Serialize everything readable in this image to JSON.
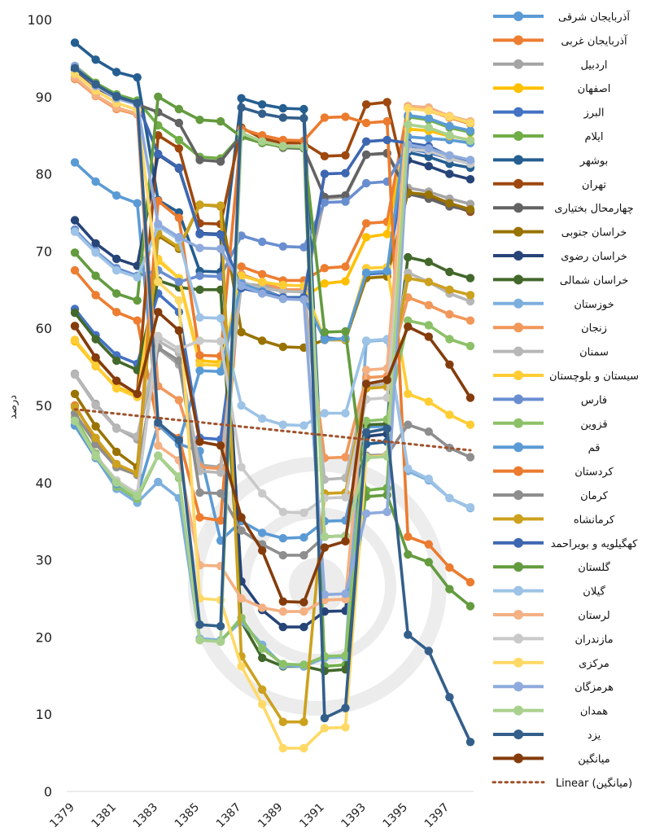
{
  "chart_data": {
    "type": "line",
    "xlabel": "",
    "ylabel": "درصد",
    "ylim": [
      0,
      100
    ],
    "yticks": [
      "0",
      "10",
      "20",
      "30",
      "40",
      "50",
      "60",
      "70",
      "80",
      "90",
      "100"
    ],
    "x": [
      1379,
      1380,
      1381,
      1382,
      1383,
      1384,
      1385,
      1386,
      1387,
      1388,
      1389,
      1390,
      1391,
      1392,
      1393,
      1394,
      1395,
      1396,
      1397,
      1398
    ],
    "xtick_labels": [
      "1379",
      "1381",
      "1383",
      "1385",
      "1387",
      "1389",
      "1391",
      "1393",
      "1395",
      "1397"
    ],
    "legend_position": "right",
    "grid": false,
    "trendline": {
      "label": "Linear (میانگین)",
      "start": 49.5,
      "end": 44.2,
      "color": "#a0522d"
    },
    "series": [
      {
        "name": "آذربایجان شرقی",
        "color": "#5b9bd5",
        "values": [
          81.5,
          79,
          77.2,
          76.2,
          47.5,
          45,
          44.1,
          32.5,
          35,
          33.5,
          32.8,
          32.9,
          35,
          35.1,
          47.2,
          47.3,
          84.8,
          84.6,
          84.4,
          84
        ]
      },
      {
        "name": "آذربایجان غربی",
        "color": "#ed7d31",
        "values": [
          67.5,
          64.3,
          62.1,
          61,
          47.3,
          45.8,
          35.5,
          35.1,
          68,
          67,
          66.2,
          66.2,
          67.8,
          68,
          73.6,
          73.8,
          88.6,
          88.2,
          87.3,
          86.5
        ]
      },
      {
        "name": "اردبیل",
        "color": "#a5a5a5",
        "values": [
          54.1,
          50.2,
          47.1,
          45.6,
          57.4,
          55.3,
          42.3,
          42,
          65.8,
          65.5,
          65,
          64.9,
          76.8,
          77,
          82.5,
          82.6,
          78.2,
          77.7,
          76.8,
          76.1
        ]
      },
      {
        "name": "اصفهان",
        "color": "#ffc000",
        "values": [
          58.3,
          55.1,
          52.4,
          51.3,
          68.8,
          66.5,
          55.8,
          55.6,
          66,
          65,
          64,
          64,
          65.8,
          66.1,
          71.8,
          72.2,
          85.8,
          85.6,
          84.9,
          84.4
        ]
      },
      {
        "name": "البرز",
        "color": "#4472c4",
        "values": [
          62.5,
          59.1,
          56.5,
          55.4,
          64.5,
          62.1,
          45.8,
          45.6,
          66,
          65,
          64,
          64,
          58.8,
          58.5,
          67,
          67.2,
          83.2,
          82.8,
          82,
          81.3
        ]
      },
      {
        "name": "ایلام",
        "color": "#70ad47",
        "values": [
          94,
          91.8,
          90.3,
          89.5,
          86.3,
          84.4,
          82.2,
          82,
          85,
          84.2,
          83.6,
          83.5,
          16.2,
          16.4,
          39,
          39.3,
          87.4,
          87,
          86,
          85.4
        ]
      },
      {
        "name": "بوشهر",
        "color": "#255e91",
        "values": [
          97,
          94.8,
          93.2,
          92.5,
          76.6,
          75,
          67.4,
          67.3,
          89.8,
          89,
          88.5,
          88.4,
          33,
          33.1,
          45,
          45.3,
          82.8,
          82.2,
          81.3,
          80.8
        ]
      },
      {
        "name": "تهران",
        "color": "#9e480e",
        "values": [
          60.3,
          56.2,
          53.2,
          51.5,
          85,
          83.3,
          73.6,
          73.5,
          86,
          84.6,
          84,
          84,
          82.3,
          82.4,
          89,
          89.3,
          77.6,
          77,
          76,
          75.1
        ]
      },
      {
        "name": "چهارمحال بختیاری",
        "color": "#636363",
        "values": [
          93.5,
          91.2,
          89.8,
          89,
          88,
          86.6,
          81.8,
          81.6,
          85,
          84.2,
          83.4,
          83.3,
          77,
          77.2,
          82.5,
          82.7,
          77.4,
          76.8,
          75.8,
          75.3
        ]
      },
      {
        "name": "خراسان جنوبی",
        "color": "#997300",
        "values": [
          51.5,
          47.3,
          44,
          42,
          72,
          70.3,
          76,
          75.8,
          59.5,
          58.4,
          57.6,
          57.5,
          58.5,
          58.5,
          66.5,
          66.7,
          77.6,
          77.3,
          76.2,
          75.4
        ]
      },
      {
        "name": "خراسان رضوی",
        "color": "#264478",
        "values": [
          74,
          71,
          69,
          68.1,
          82.5,
          80.7,
          72.3,
          72.2,
          27.2,
          23.5,
          21.3,
          21.3,
          23.3,
          23.4,
          46,
          46.3,
          81.8,
          81,
          80,
          79.3
        ]
      },
      {
        "name": "خراسان شمالی",
        "color": "#43682b",
        "values": [
          62,
          58.6,
          55.8,
          54.6,
          66.2,
          65.3,
          65,
          65,
          22,
          17.3,
          16.2,
          16.2,
          15.6,
          15.8,
          47.5,
          47.6,
          69.2,
          68.6,
          67.3,
          66.5
        ]
      },
      {
        "name": "خوزستان",
        "color": "#7cafdd",
        "values": [
          47.5,
          43.3,
          39.2,
          37.4,
          40.1,
          38,
          19.8,
          19.6,
          22,
          19,
          16.3,
          16.2,
          17.3,
          17.4,
          58.3,
          58.5,
          41.5,
          40.3,
          38,
          36.7
        ]
      },
      {
        "name": "زنجان",
        "color": "#f1975a",
        "values": [
          92.3,
          90.1,
          88.4,
          87.7,
          52.5,
          50.7,
          42,
          41.8,
          67,
          66,
          65,
          65,
          43.2,
          43.3,
          53.6,
          53.8,
          64,
          63,
          61.8,
          61
        ]
      },
      {
        "name": "سمنان",
        "color": "#b7b7b7",
        "values": [
          54,
          50,
          47,
          46,
          58.4,
          56.8,
          41.5,
          41.3,
          66,
          65.2,
          64.8,
          64.7,
          40.4,
          40.6,
          52.6,
          52.8,
          67.2,
          66,
          64.5,
          63.5
        ]
      },
      {
        "name": "سیستان و بلوچستان",
        "color": "#ffcd33",
        "values": [
          58.5,
          55.2,
          52.2,
          51.1,
          69,
          66.5,
          55.3,
          55.2,
          66.8,
          66,
          65.6,
          65.5,
          58.5,
          58.6,
          67.8,
          67.9,
          51.5,
          50.5,
          48.8,
          47.5
        ]
      },
      {
        "name": "فارس",
        "color": "#698ed0",
        "values": [
          72.8,
          70,
          67.8,
          66.8,
          67.5,
          66,
          66.8,
          66.7,
          72,
          71.2,
          70.6,
          70.5,
          76.3,
          76.4,
          78.8,
          79,
          83.6,
          83.2,
          82.2,
          81.5
        ]
      },
      {
        "name": "قزوین",
        "color": "#8cc168",
        "values": [
          48.5,
          43.8,
          39.5,
          37.9,
          43.5,
          40.6,
          19.6,
          19.4,
          22.5,
          18.5,
          16.5,
          16.4,
          17.5,
          17.6,
          48,
          48.2,
          61,
          60.4,
          58.6,
          57.7
        ]
      },
      {
        "name": "قم",
        "color": "#5b9bd5",
        "values": [
          47.4,
          43.2,
          39.8,
          38.5,
          47.5,
          45.2,
          54.5,
          54.4,
          65.8,
          64.8,
          64,
          64,
          58.5,
          58.7,
          67.2,
          67.4,
          87.6,
          87.2,
          86.2,
          85.6
        ]
      },
      {
        "name": "کردستان",
        "color": "#eb7b2f",
        "values": [
          50,
          45.5,
          42.2,
          41,
          76.5,
          74.3,
          56.5,
          56.4,
          85.8,
          85,
          84.4,
          84.3,
          87.3,
          87.4,
          86.6,
          86.8,
          33,
          32,
          29,
          27.1
        ]
      },
      {
        "name": "کرمان",
        "color": "#8e8e8e",
        "values": [
          49,
          45,
          42,
          41,
          57.5,
          55.8,
          38.7,
          38.6,
          33.8,
          32,
          30.6,
          30.6,
          33,
          33.1,
          43.5,
          43.6,
          47.5,
          46.6,
          44.5,
          43.3
        ]
      },
      {
        "name": "کرمانشاه",
        "color": "#cca11e",
        "values": [
          49.8,
          45.8,
          42.4,
          41.2,
          72.3,
          70.5,
          76,
          75.9,
          17.5,
          13.2,
          9,
          9,
          38.6,
          38.7,
          52.2,
          52.4,
          66.5,
          66,
          65,
          64.3
        ]
      },
      {
        "name": "کهگیلویه و بویراحمد",
        "color": "#3d67b1",
        "values": [
          93.6,
          91.5,
          90.1,
          89.2,
          82.6,
          80.8,
          72.2,
          72.1,
          65.2,
          64.6,
          64,
          64,
          80,
          80.1,
          84.2,
          84.4,
          84,
          83.6,
          82.3,
          81.6
        ]
      },
      {
        "name": "گلستان",
        "color": "#639b3e",
        "values": [
          69.8,
          66.8,
          64.5,
          63.6,
          90,
          88.4,
          87,
          86.8,
          84.8,
          84,
          83.5,
          83.4,
          59.5,
          59.6,
          38.2,
          38.4,
          30.7,
          29.7,
          26.2,
          24
        ]
      },
      {
        "name": "گیلان",
        "color": "#9dc3e6",
        "values": [
          72.5,
          69.8,
          67.5,
          66.6,
          73.2,
          71.5,
          61.4,
          61.3,
          50,
          48.3,
          47.5,
          47.4,
          49,
          49,
          58.4,
          58.6,
          41.8,
          40.5,
          38,
          36.8
        ]
      },
      {
        "name": "لرستان",
        "color": "#f4b183",
        "values": [
          92.5,
          90.2,
          88.6,
          87.8,
          44.8,
          42.9,
          29.3,
          29.2,
          25,
          23.8,
          23.3,
          23.3,
          24.8,
          24.9,
          54.6,
          54.8,
          88.8,
          88.6,
          87.5,
          86.8
        ]
      },
      {
        "name": "مازندران",
        "color": "#c9c9c9",
        "values": [
          48,
          43.5,
          40.3,
          38.6,
          59,
          57.3,
          58.4,
          58.3,
          42,
          38.6,
          36.2,
          36.1,
          38,
          38.1,
          50.8,
          51,
          83.2,
          83,
          82,
          81.3
        ]
      },
      {
        "name": "مرکزی",
        "color": "#ffd966",
        "values": [
          93,
          90.8,
          89.2,
          88.3,
          66,
          63.6,
          25,
          24.8,
          16.2,
          11.3,
          5.6,
          5.6,
          8.2,
          8.3,
          43.3,
          43.5,
          88.5,
          88.2,
          87.4,
          86.6
        ]
      },
      {
        "name": "هرمزگان",
        "color": "#8faadc",
        "values": [
          94,
          91.4,
          89.8,
          89,
          73.5,
          71.8,
          70.4,
          70.3,
          65.5,
          64.5,
          63.8,
          63.7,
          25.5,
          25.6,
          36,
          36.2,
          83.8,
          83.3,
          82.4,
          81.8
        ]
      },
      {
        "name": "همدان",
        "color": "#a9d18e",
        "values": [
          48,
          43.4,
          40,
          38.3,
          43.5,
          40.8,
          19.6,
          19.4,
          85.3,
          84.2,
          83.6,
          83.5,
          33,
          33.1,
          43.2,
          43.4,
          86.4,
          86,
          85,
          84.3
        ]
      },
      {
        "name": "یزد",
        "color": "#335f8a",
        "values": [
          93.7,
          91.6,
          90,
          89.2,
          47.8,
          45.5,
          21.6,
          21.4,
          88.6,
          87.8,
          87.3,
          87.2,
          9.5,
          10.8,
          46.5,
          47,
          20.3,
          18.2,
          12.2,
          6.4
        ]
      },
      {
        "name": "میانگین",
        "color": "#843c0c",
        "values": [
          60.3,
          56.2,
          53.2,
          51.5,
          62.1,
          59.7,
          45.3,
          44.8,
          35.5,
          31.2,
          24.6,
          24.5,
          31.6,
          32.4,
          52.8,
          53.3,
          60.2,
          58.9,
          55.3,
          51
        ]
      }
    ]
  }
}
